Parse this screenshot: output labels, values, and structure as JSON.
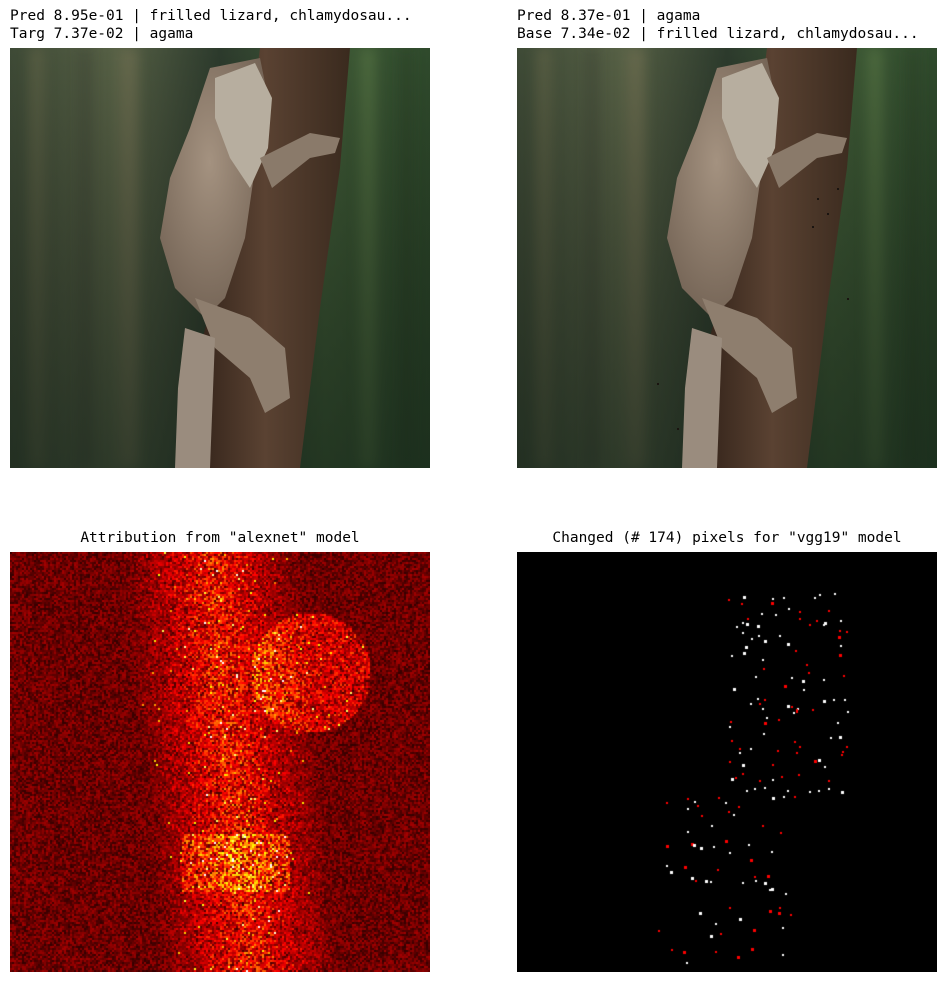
{
  "panels": {
    "original": {
      "line1": "Pred 8.95e-01 | frilled lizard, chlamydosau...",
      "line2": "Targ 7.37e-02 | agama",
      "image": "frilled-lizard-on-tree-photo"
    },
    "adversarial": {
      "line1": "Pred 8.37e-01 | agama",
      "line2": "Base 7.34e-02 | frilled lizard, chlamydosau...",
      "image": "perturbed-frilled-lizard-photo"
    },
    "attribution": {
      "title": "Attribution from \"alexnet\" model",
      "colormap": "hot"
    },
    "changed": {
      "title": "Changed (# 174) pixels for \"vgg19\" model",
      "changed_count": 174,
      "colors": [
        "#ffffff",
        "#ff0000"
      ]
    }
  }
}
